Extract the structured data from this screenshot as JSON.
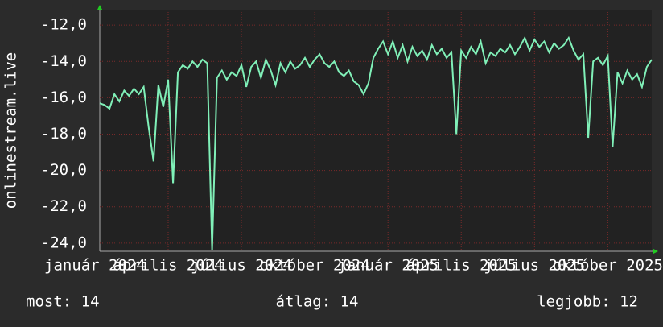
{
  "chart_data": {
    "type": "line",
    "y_label": "onlinestream.live",
    "summary": [
      "most: 14",
      "átlag: 14",
      "legjobb: 12"
    ],
    "grid": true,
    "xlim": [
      0.2,
      22.8
    ],
    "xticks": [
      {
        "value": 0,
        "label": "január 2024"
      },
      {
        "value": 3,
        "label": "április 2024"
      },
      {
        "value": 6,
        "label": "július 2024"
      },
      {
        "value": 9,
        "label": "október 2024"
      },
      {
        "value": 12,
        "label": "január 2025"
      },
      {
        "value": 15,
        "label": "április 2025"
      },
      {
        "value": 18,
        "label": "július 2025"
      },
      {
        "value": 21,
        "label": "október 2025"
      }
    ],
    "ylim": [
      -24.45,
      -11.15
    ],
    "yticks": [
      {
        "value": -24,
        "label": "-24,0"
      },
      {
        "value": -22,
        "label": "-22,0"
      },
      {
        "value": -20,
        "label": "-20,0"
      },
      {
        "value": -18,
        "label": "-18,0"
      },
      {
        "value": -16,
        "label": "-16,0"
      },
      {
        "value": -14,
        "label": "-14,0"
      },
      {
        "value": -12,
        "label": "-12,0"
      }
    ],
    "x": [
      0.2,
      0.4,
      0.6,
      0.8,
      1.0,
      1.2,
      1.4,
      1.6,
      1.8,
      2.0,
      2.2,
      2.4,
      2.6,
      2.8,
      3.0,
      3.2,
      3.4,
      3.6,
      3.8,
      4.0,
      4.2,
      4.4,
      4.6,
      4.8,
      5.0,
      5.2,
      5.4,
      5.6,
      5.8,
      6.0,
      6.2,
      6.4,
      6.6,
      6.8,
      7.0,
      7.2,
      7.4,
      7.6,
      7.8,
      8.0,
      8.2,
      8.4,
      8.6,
      8.8,
      9.0,
      9.2,
      9.4,
      9.6,
      9.8,
      10.0,
      10.2,
      10.4,
      10.6,
      10.8,
      11.0,
      11.2,
      11.4,
      11.6,
      11.8,
      12.0,
      12.2,
      12.4,
      12.6,
      12.8,
      13.0,
      13.2,
      13.4,
      13.6,
      13.8,
      14.0,
      14.2,
      14.4,
      14.6,
      14.8,
      15.0,
      15.2,
      15.4,
      15.6,
      15.8,
      16.0,
      16.2,
      16.4,
      16.6,
      16.8,
      17.0,
      17.2,
      17.4,
      17.6,
      17.8,
      18.0,
      18.2,
      18.4,
      18.6,
      18.8,
      19.0,
      19.2,
      19.4,
      19.6,
      19.8,
      20.0,
      20.2,
      20.4,
      20.6,
      20.8,
      21.0,
      21.2,
      21.4,
      21.6,
      21.8,
      22.0,
      22.2,
      22.4,
      22.6,
      22.8
    ],
    "series": [
      {
        "name": "onlinestream.live",
        "color": "#80f0b8",
        "values": [
          -16.3,
          -16.4,
          -16.6,
          -15.8,
          -16.2,
          -15.6,
          -15.9,
          -15.5,
          -15.8,
          -15.4,
          -17.6,
          -19.5,
          -15.3,
          -16.5,
          -15.0,
          -20.7,
          -14.6,
          -14.2,
          -14.4,
          -14.0,
          -14.3,
          -13.9,
          -14.1,
          -24.4,
          -14.9,
          -14.5,
          -15.0,
          -14.6,
          -14.8,
          -14.2,
          -15.4,
          -14.3,
          -14.0,
          -14.9,
          -13.9,
          -14.5,
          -15.3,
          -14.1,
          -14.6,
          -14.0,
          -14.4,
          -14.2,
          -13.8,
          -14.3,
          -13.9,
          -13.6,
          -14.1,
          -14.3,
          -14.0,
          -14.6,
          -14.8,
          -14.5,
          -15.1,
          -15.3,
          -15.8,
          -15.2,
          -13.8,
          -13.3,
          -12.9,
          -13.6,
          -12.9,
          -13.8,
          -13.1,
          -14.0,
          -13.2,
          -13.7,
          -13.4,
          -13.9,
          -13.1,
          -13.6,
          -13.3,
          -13.8,
          -13.5,
          -18.0,
          -13.4,
          -13.8,
          -13.2,
          -13.6,
          -12.9,
          -14.1,
          -13.5,
          -13.7,
          -13.3,
          -13.5,
          -13.1,
          -13.6,
          -13.2,
          -12.7,
          -13.4,
          -12.8,
          -13.2,
          -12.9,
          -13.5,
          -13.0,
          -13.3,
          -13.1,
          -12.7,
          -13.4,
          -13.9,
          -13.6,
          -18.2,
          -14.0,
          -13.8,
          -14.2,
          -13.7,
          -18.7,
          -14.6,
          -15.2,
          -14.5,
          -15.0,
          -14.7,
          -15.4,
          -14.3,
          -13.9
        ]
      }
    ]
  }
}
